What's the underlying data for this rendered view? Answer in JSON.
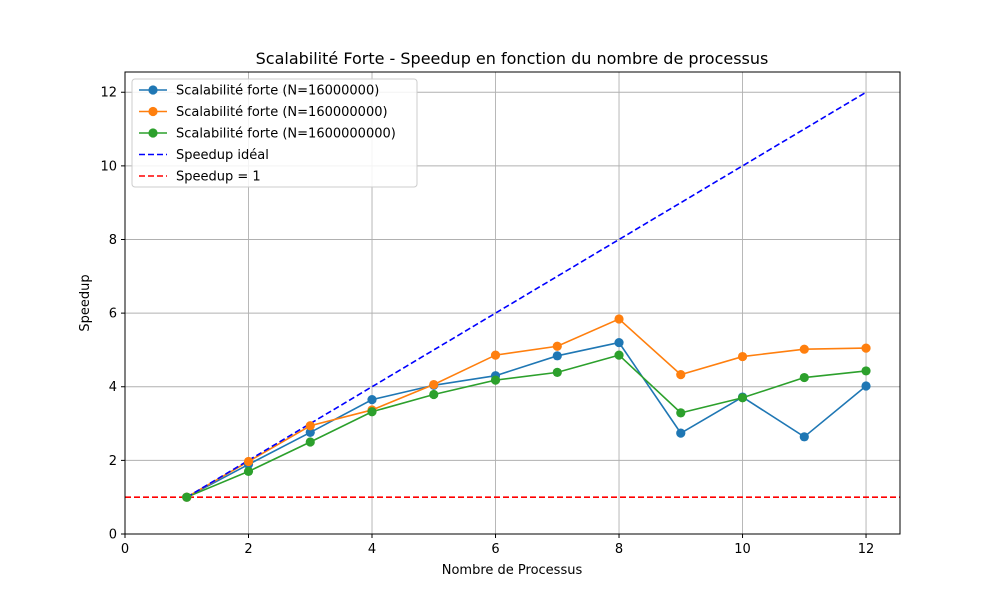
{
  "chart_data": {
    "type": "line",
    "title": "Scalabilité Forte - Speedup en fonction du nombre de processus",
    "xlabel": "Nombre de Processus",
    "ylabel": "Speedup",
    "xlim": [
      0,
      12.55
    ],
    "ylim": [
      0,
      12.55
    ],
    "xticks": [
      0,
      2,
      4,
      6,
      8,
      10,
      12
    ],
    "yticks": [
      0,
      2,
      4,
      6,
      8,
      10,
      12
    ],
    "grid": true,
    "legend_position": "top-left",
    "x": [
      1,
      2,
      3,
      4,
      5,
      6,
      7,
      8,
      9,
      10,
      11,
      12
    ],
    "series": [
      {
        "name": "Scalabilité forte (N=16000000)",
        "color": "#1f77b4",
        "style": "solid-marker",
        "values": [
          1.0,
          1.89,
          2.76,
          3.65,
          4.04,
          4.3,
          4.84,
          5.2,
          2.74,
          3.72,
          2.64,
          4.02
        ]
      },
      {
        "name": "Scalabilité forte (N=160000000)",
        "color": "#ff7f0e",
        "style": "solid-marker",
        "values": [
          1.0,
          1.97,
          2.94,
          3.37,
          4.06,
          4.86,
          5.1,
          5.84,
          4.33,
          4.82,
          5.02,
          5.05
        ]
      },
      {
        "name": "Scalabilité forte (N=1600000000)",
        "color": "#2ca02c",
        "style": "solid-marker",
        "values": [
          1.0,
          1.7,
          2.5,
          3.32,
          3.79,
          4.18,
          4.39,
          4.86,
          3.29,
          3.7,
          4.25,
          4.43
        ]
      },
      {
        "name": "Speedup idéal",
        "color": "#0000ff",
        "style": "dashed",
        "values": [
          1,
          2,
          3,
          4,
          5,
          6,
          7,
          8,
          9,
          10,
          11,
          12
        ]
      },
      {
        "name": "Speedup = 1",
        "color": "#ff0000",
        "style": "dashed-hline",
        "y": 1
      }
    ]
  }
}
